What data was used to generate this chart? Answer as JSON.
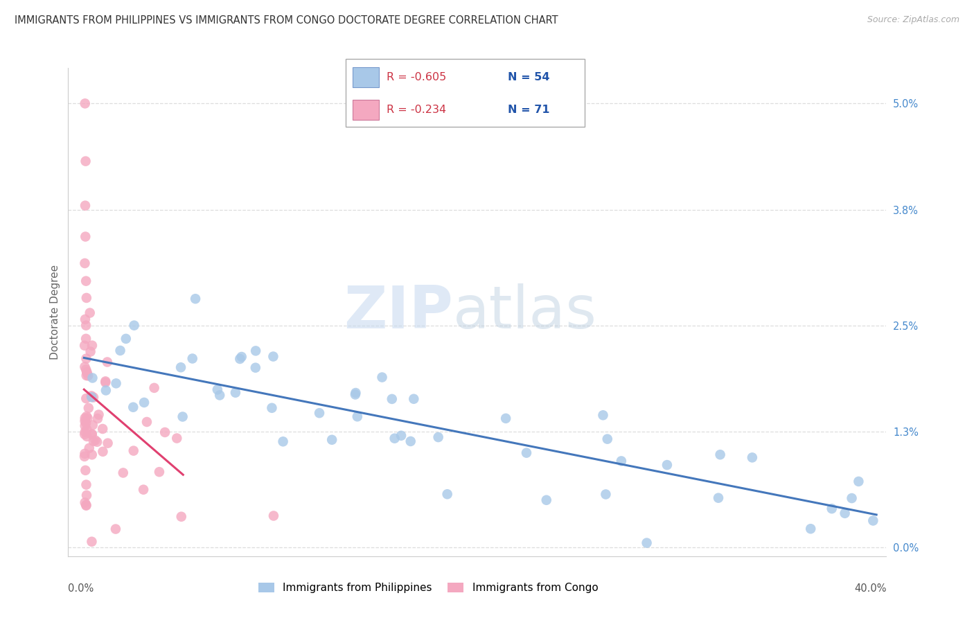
{
  "title": "IMMIGRANTS FROM PHILIPPINES VS IMMIGRANTS FROM CONGO DOCTORATE DEGREE CORRELATION CHART",
  "source": "Source: ZipAtlas.com",
  "ylabel": "Doctorate Degree",
  "ytick_values": [
    0.0,
    1.3,
    2.5,
    3.8,
    5.0
  ],
  "ytick_labels": [
    "0.0%",
    "1.3%",
    "2.5%",
    "3.8%",
    "5.0%"
  ],
  "xlim_min": 0.0,
  "xlim_max": 40.0,
  "ylim_min": -0.1,
  "ylim_max": 5.4,
  "legend1_R": "R = -0.605",
  "legend1_N": "N = 54",
  "legend2_R": "R = -0.234",
  "legend2_N": "N = 71",
  "phil_color": "#a8c8e8",
  "congo_color": "#f4a8c0",
  "phil_line_color": "#4477bb",
  "congo_line_color": "#e04070",
  "watermark_ZIP": "ZIP",
  "watermark_atlas": "atlas",
  "watermark_color_ZIP": "#c8d8f0",
  "watermark_color_atlas": "#b8c8e0",
  "grid_color": "#dddddd",
  "source_color": "#aaaaaa",
  "phil_label": "Immigrants from Philippines",
  "congo_label": "Immigrants from Congo",
  "legend_R_color": "#cc3344",
  "legend_N_color": "#2255aa",
  "background": "#ffffff"
}
